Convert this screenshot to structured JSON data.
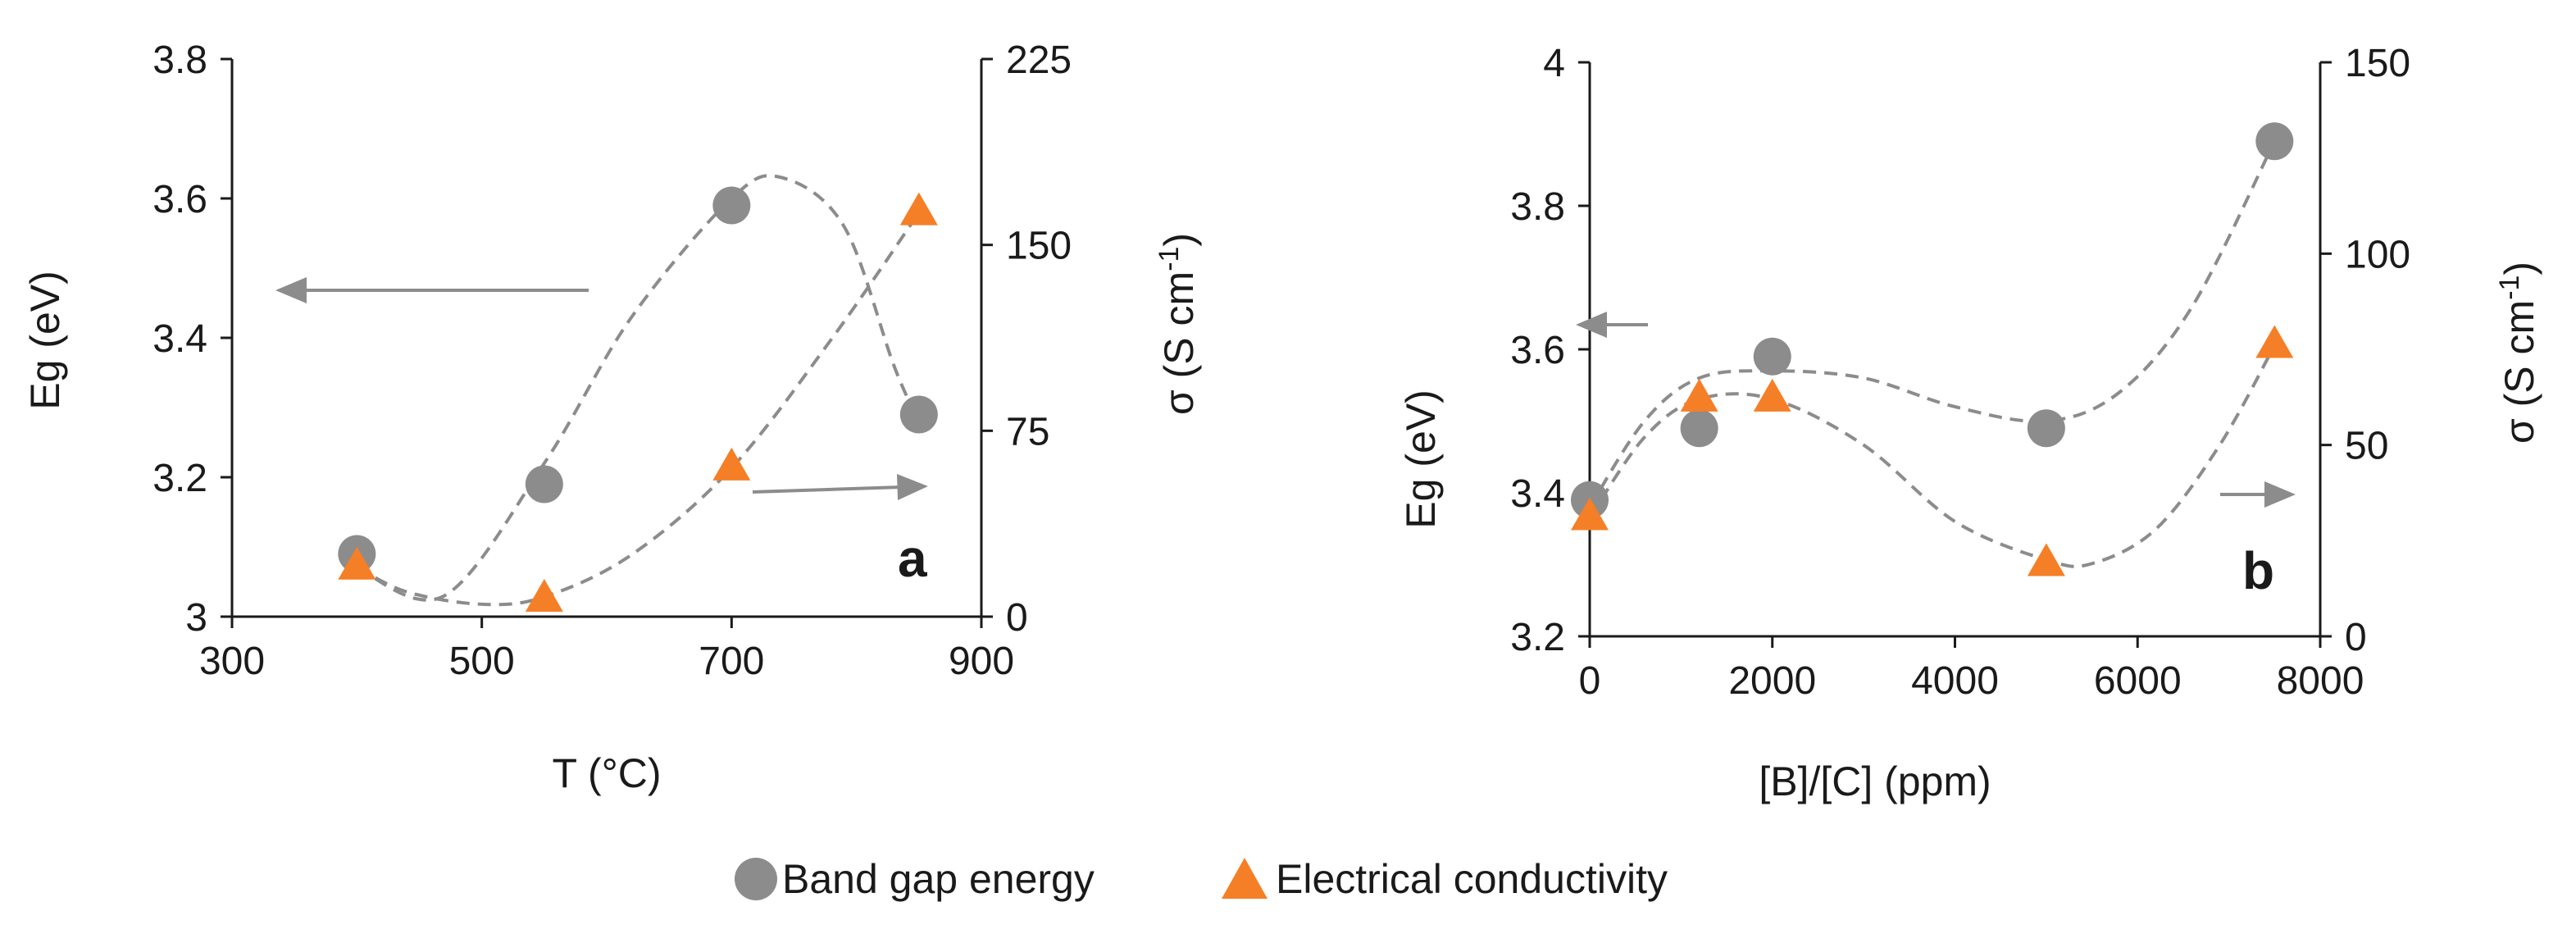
{
  "chart_data": [
    {
      "type": "scatter",
      "panel_label": "a",
      "xlabel": "T (°C)",
      "ylabel_left": "Eg (eV)",
      "ylabel_right": "σ (S cm",
      "ylabel_right_sup": "-1",
      "ylabel_right_close": ")",
      "xlim": [
        300,
        900
      ],
      "ylim_left": [
        3.0,
        3.8
      ],
      "ylim_right": [
        0,
        225
      ],
      "xticks": [
        300,
        500,
        700,
        900
      ],
      "xtick_labels": [
        "300",
        "500",
        "700",
        "900"
      ],
      "yticks_left": [
        3.0,
        3.2,
        3.4,
        3.6,
        3.8
      ],
      "ytick_labels_left": [
        "3",
        "3.2",
        "3.4",
        "3.6",
        "3.8"
      ],
      "yticks_right": [
        0,
        75,
        150,
        225
      ],
      "ytick_labels_right": [
        "0",
        "75",
        "150",
        "225"
      ],
      "series": [
        {
          "name": "Band gap energy",
          "axis": "left",
          "marker": "circle",
          "color": "#8c8c8c",
          "x": [
            400,
            550,
            700,
            850
          ],
          "y": [
            3.09,
            3.19,
            3.59,
            3.29
          ],
          "trend_x": [
            400,
            470,
            550,
            620,
            700,
            740,
            790,
            830,
            850
          ],
          "trend_y": [
            3.07,
            3.03,
            3.22,
            3.43,
            3.6,
            3.63,
            3.56,
            3.36,
            3.28
          ]
        },
        {
          "name": "Electrical conductivity",
          "axis": "right",
          "marker": "triangle",
          "color": "#f57f26",
          "x": [
            400,
            550,
            700,
            850
          ],
          "y": [
            20,
            7,
            60,
            163
          ],
          "trend_x": [
            400,
            440,
            500,
            550,
            620,
            700,
            780,
            850
          ],
          "trend_y": [
            20,
            10,
            5,
            8,
            25,
            60,
            112,
            163
          ]
        }
      ],
      "annotations": [
        {
          "type": "arrow",
          "direction": "left",
          "meaning": "Eg axis"
        },
        {
          "type": "arrow",
          "direction": "right",
          "meaning": "σ axis"
        }
      ]
    },
    {
      "type": "scatter",
      "panel_label": "b",
      "xlabel": "[B]/[C] (ppm)",
      "ylabel_left": "Eg (eV)",
      "ylabel_right": "σ (S cm",
      "ylabel_right_sup": "-1",
      "ylabel_right_close": ")",
      "xlim": [
        0,
        8000
      ],
      "ylim_left": [
        3.2,
        4.0
      ],
      "ylim_right": [
        0,
        150
      ],
      "xticks": [
        0,
        2000,
        4000,
        6000,
        8000
      ],
      "xtick_labels": [
        "0",
        "2000",
        "4000",
        "6000",
        "8000"
      ],
      "yticks_left": [
        3.2,
        3.4,
        3.6,
        3.8,
        4.0
      ],
      "ytick_labels_left": [
        "3.2",
        "3.4",
        "3.6",
        "3.8",
        "4"
      ],
      "yticks_right": [
        0,
        50,
        100,
        150
      ],
      "ytick_labels_right": [
        "0",
        "50",
        "100",
        "150"
      ],
      "series": [
        {
          "name": "Band gap energy",
          "axis": "left",
          "marker": "circle",
          "color": "#8c8c8c",
          "x": [
            0,
            1200,
            2000,
            5000,
            7500
          ],
          "y": [
            3.39,
            3.49,
            3.59,
            3.49,
            3.89
          ],
          "trend_x": [
            0,
            600,
            1200,
            2000,
            3000,
            4000,
            5000,
            5800,
            6600,
            7500
          ],
          "trend_y": [
            3.38,
            3.5,
            3.56,
            3.57,
            3.56,
            3.52,
            3.5,
            3.54,
            3.66,
            3.89
          ]
        },
        {
          "name": "Electrical conductivity",
          "axis": "right",
          "marker": "triangle",
          "color": "#f57f26",
          "x": [
            0,
            1200,
            2000,
            5000,
            7500
          ],
          "y": [
            31,
            62,
            62,
            19,
            76
          ],
          "trend_x": [
            0,
            600,
            1200,
            2000,
            3000,
            4000,
            5000,
            5500,
            6200,
            6900,
            7500
          ],
          "trend_y": [
            31,
            52,
            62,
            62,
            50,
            30,
            20,
            19,
            28,
            50,
            76
          ]
        }
      ],
      "annotations": [
        {
          "type": "arrow",
          "direction": "left",
          "meaning": "Eg axis"
        },
        {
          "type": "arrow",
          "direction": "right",
          "meaning": "σ axis"
        }
      ]
    }
  ],
  "legend": {
    "placement": "bottom-center",
    "items": [
      {
        "label": "Band gap energy",
        "marker": "circle-icon",
        "color": "#8c8c8c"
      },
      {
        "label": "Electrical conductivity",
        "marker": "triangle-icon",
        "color": "#f57f26"
      }
    ]
  },
  "colors": {
    "axis": "#1a1a1a",
    "trend_line": "#8c8c8c",
    "arrow": "#8c8c8c"
  }
}
